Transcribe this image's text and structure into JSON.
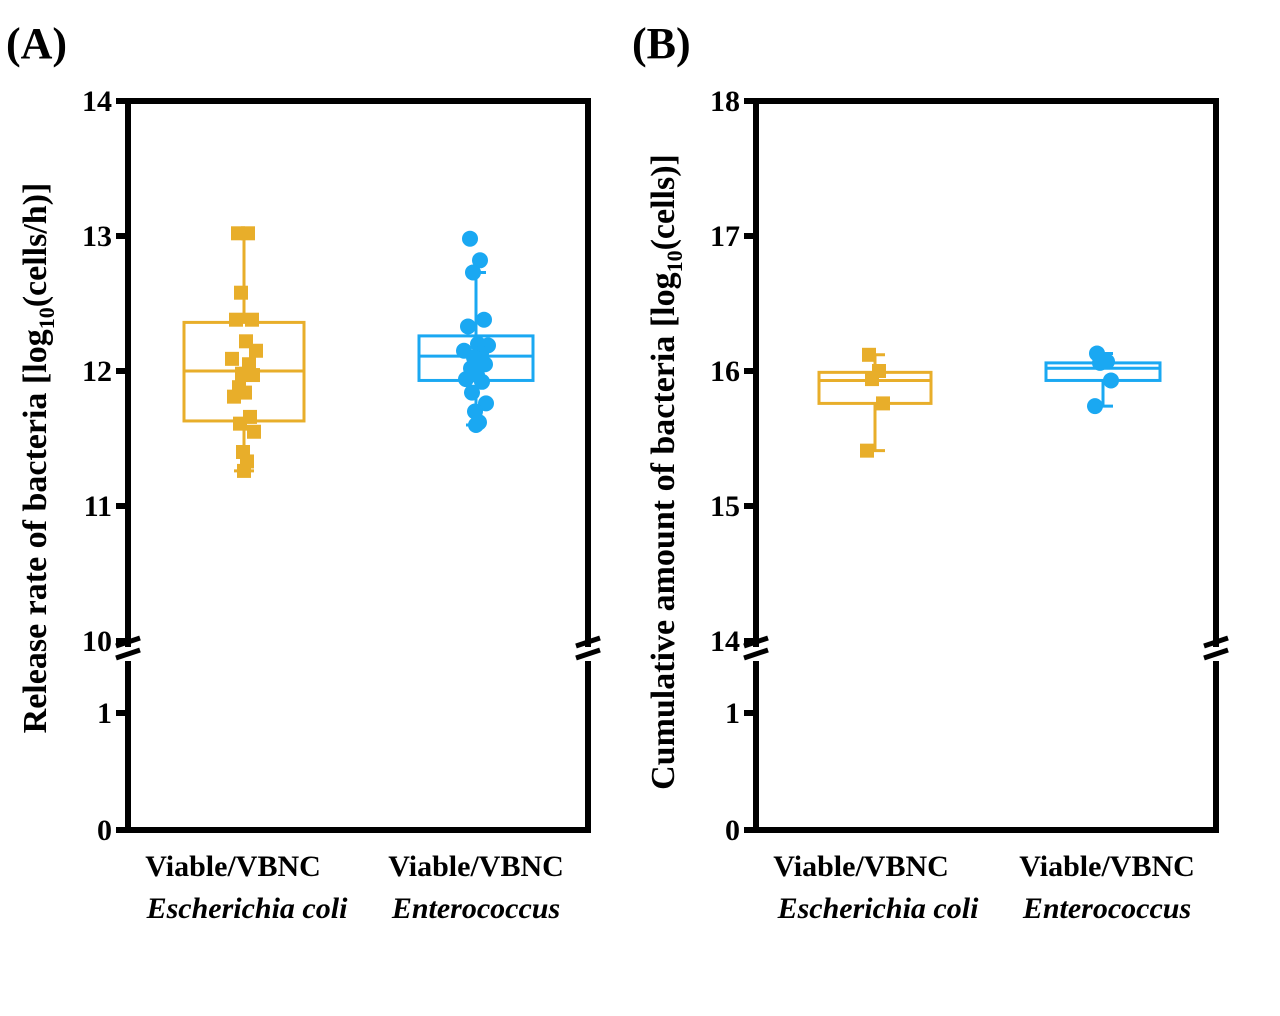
{
  "colors": {
    "ecoli": "#E8AE2A",
    "enterococcus": "#1AA8F2",
    "axis": "#000000"
  },
  "chart_data": [
    {
      "panel_label": "(A)",
      "type": "box",
      "ylabel_main": "Release rate of bacteria  [log",
      "ylabel_sub": "10",
      "ylabel_tail": "(cells/h)]",
      "ylim_upper": [
        10,
        14
      ],
      "ylim_lower": [
        0,
        1
      ],
      "yticks_upper": [
        "14",
        "13",
        "12",
        "11",
        "10"
      ],
      "yticks_lower": [
        "1",
        "0"
      ],
      "axis_break": true,
      "categories": [
        {
          "line1": "Viable/VBNC",
          "line2": "Escherichia coli"
        },
        {
          "line1": "Viable/VBNC",
          "line2": "Enterococcus"
        }
      ],
      "series": [
        {
          "name": "Escherichia coli",
          "marker": "square",
          "box": {
            "q1": 11.63,
            "median": 12.0,
            "q3": 12.36,
            "whisker_low": 11.26,
            "whisker_high": 13.01
          },
          "points": [
            13.02,
            13.02,
            12.58,
            12.38,
            12.38,
            12.22,
            12.15,
            12.09,
            12.05,
            11.98,
            11.97,
            11.88,
            11.84,
            11.81,
            11.66,
            11.61,
            11.55,
            11.4,
            11.33,
            11.26
          ]
        },
        {
          "name": "Enterococcus",
          "marker": "circle",
          "box": {
            "q1": 11.93,
            "median": 12.11,
            "q3": 12.26,
            "whisker_low": 11.6,
            "whisker_high": 12.73
          },
          "points": [
            12.98,
            12.82,
            12.73,
            12.38,
            12.33,
            12.2,
            12.19,
            12.15,
            12.13,
            12.1,
            12.05,
            12.02,
            11.97,
            11.94,
            11.92,
            11.84,
            11.76,
            11.7,
            11.62,
            11.6
          ]
        }
      ]
    },
    {
      "panel_label": "(B)",
      "type": "box",
      "ylabel_main": "Cumulative amount of bacteria  [log",
      "ylabel_sub": "10",
      "ylabel_tail": "(cells)]",
      "ylim_upper": [
        14,
        18
      ],
      "ylim_lower": [
        0,
        1
      ],
      "yticks_upper": [
        "18",
        "17",
        "16",
        "15",
        "14"
      ],
      "yticks_lower": [
        "1",
        "0"
      ],
      "axis_break": true,
      "categories": [
        {
          "line1": "Viable/VBNC",
          "line2": "Escherichia coli"
        },
        {
          "line1": "Viable/VBNC",
          "line2": "Enterococcus"
        }
      ],
      "series": [
        {
          "name": "Escherichia coli",
          "marker": "square",
          "box": {
            "q1": 15.76,
            "median": 15.93,
            "q3": 15.99,
            "whisker_low": 15.41,
            "whisker_high": 16.12
          },
          "points": [
            16.12,
            16.0,
            15.94,
            15.76,
            15.41
          ]
        },
        {
          "name": "Enterococcus",
          "marker": "circle",
          "box": {
            "q1": 15.93,
            "median": 16.02,
            "q3": 16.06,
            "whisker_low": 15.74,
            "whisker_high": 16.13
          },
          "points": [
            16.13,
            16.07,
            16.06,
            15.93,
            15.74
          ]
        }
      ]
    }
  ]
}
